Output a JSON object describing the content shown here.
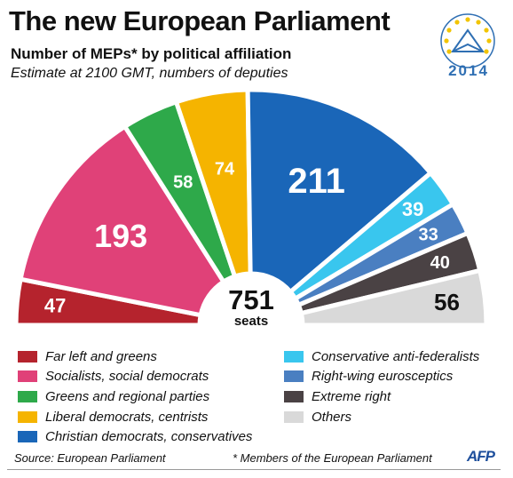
{
  "chart_data": {
    "type": "pie",
    "title": "The new European Parliament",
    "subtitle": "Number of MEPs* by political affiliation",
    "note": "Estimate at 2100 GMT, numbers of deputies",
    "center_value": "751",
    "center_label": "seats",
    "slices": [
      {
        "label": "Far left and greens",
        "value": 47,
        "color": "#b5232d"
      },
      {
        "label": "Socialists, social democrats",
        "value": 193,
        "color": "#e04178"
      },
      {
        "label": "Greens and regional parties",
        "value": 58,
        "color": "#2ea94a"
      },
      {
        "label": "Liberal democrats, centrists",
        "value": 74,
        "color": "#f5b400"
      },
      {
        "label": "Christian democrats, conservatives",
        "value": 211,
        "color": "#1a66b8"
      },
      {
        "label": "Conservative anti-federalists",
        "value": 39,
        "color": "#39c6ee"
      },
      {
        "label": "Right-wing eurosceptics",
        "value": 33,
        "color": "#4a7fc1"
      },
      {
        "label": "Extreme right",
        "value": 40,
        "color": "#4a4244"
      },
      {
        "label": "Others",
        "value": 56,
        "color": "#d9d9d9"
      }
    ],
    "legend_placement": "bottom",
    "legend_left": [
      "Far left and greens",
      "Socialists, social democrats",
      "Greens and regional parties",
      "Liberal democrats, centrists",
      "Christian democrats, conservatives"
    ],
    "legend_right": [
      "Conservative anti-federalists",
      "Right-wing eurosceptics",
      "Extreme right",
      "Others"
    ]
  },
  "logo": {
    "year": "2014",
    "icon": "eu-stars-ballot-icon"
  },
  "footer": {
    "source": "Source: European Parliament",
    "footnote": "* Members of the European Parliament",
    "agency": "AFP"
  }
}
